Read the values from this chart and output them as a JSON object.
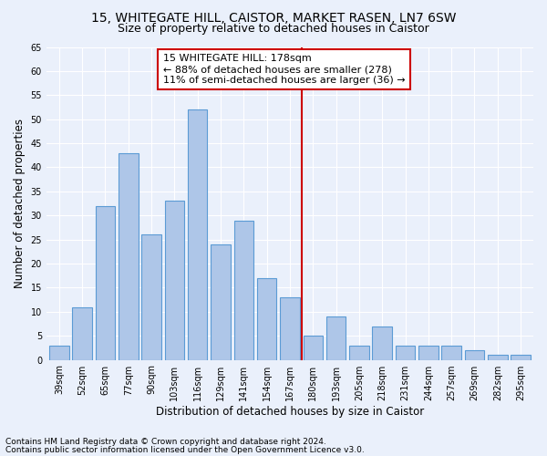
{
  "title_line1": "15, WHITEGATE HILL, CAISTOR, MARKET RASEN, LN7 6SW",
  "title_line2": "Size of property relative to detached houses in Caistor",
  "xlabel": "Distribution of detached houses by size in Caistor",
  "ylabel": "Number of detached properties",
  "categories": [
    "39sqm",
    "52sqm",
    "65sqm",
    "77sqm",
    "90sqm",
    "103sqm",
    "116sqm",
    "129sqm",
    "141sqm",
    "154sqm",
    "167sqm",
    "180sqm",
    "193sqm",
    "205sqm",
    "218sqm",
    "231sqm",
    "244sqm",
    "257sqm",
    "269sqm",
    "282sqm",
    "295sqm"
  ],
  "values": [
    3,
    11,
    32,
    43,
    26,
    33,
    52,
    24,
    29,
    17,
    13,
    5,
    9,
    3,
    7,
    3,
    3,
    3,
    2,
    1,
    1
  ],
  "bar_color": "#aec6e8",
  "bar_edge_color": "#5b9bd5",
  "background_color": "#eaf0fb",
  "grid_color": "#ffffff",
  "annotation_title": "15 WHITEGATE HILL: 178sqm",
  "annotation_line1": "← 88% of detached houses are smaller (278)",
  "annotation_line2": "11% of semi-detached houses are larger (36) →",
  "annotation_box_color": "#ffffff",
  "annotation_box_edge_color": "#cc0000",
  "vline_color": "#cc0000",
  "ylim": [
    0,
    65
  ],
  "yticks": [
    0,
    5,
    10,
    15,
    20,
    25,
    30,
    35,
    40,
    45,
    50,
    55,
    60,
    65
  ],
  "footnote1": "Contains HM Land Registry data © Crown copyright and database right 2024.",
  "footnote2": "Contains public sector information licensed under the Open Government Licence v3.0.",
  "title_fontsize": 10,
  "subtitle_fontsize": 9,
  "axis_label_fontsize": 8.5,
  "tick_fontsize": 7,
  "annotation_fontsize": 8,
  "footnote_fontsize": 6.5
}
